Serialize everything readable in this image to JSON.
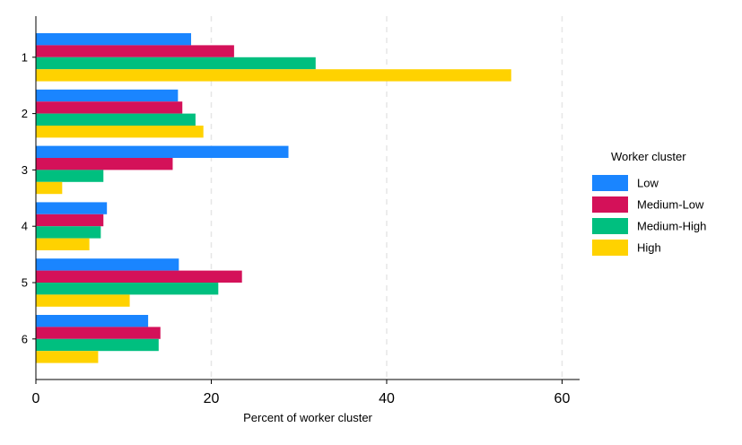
{
  "chart_data": {
    "type": "bar",
    "orientation": "horizontal",
    "categories": [
      "1",
      "2",
      "3",
      "4",
      "5",
      "6"
    ],
    "series": [
      {
        "name": "Low",
        "color": "#1a85ff",
        "values": [
          17.7,
          16.2,
          28.8,
          8.1,
          16.3,
          12.8
        ]
      },
      {
        "name": "Medium-Low",
        "color": "#d41159",
        "values": [
          22.6,
          16.7,
          15.6,
          7.7,
          23.5,
          14.2
        ]
      },
      {
        "name": "Medium-High",
        "color": "#00bf7f",
        "values": [
          31.9,
          18.2,
          7.7,
          7.4,
          20.8,
          14.0
        ]
      },
      {
        "name": "High",
        "color": "#ffd200",
        "values": [
          54.2,
          19.1,
          3.0,
          6.1,
          10.7,
          7.1
        ]
      }
    ],
    "xlabel": "Percent of worker cluster",
    "ylabel": "",
    "xlim": [
      0,
      62
    ],
    "xticks": [
      0,
      20,
      40,
      60
    ],
    "grid": "vertical-dashed",
    "legend": {
      "title": "Worker cluster",
      "placement": "right"
    }
  }
}
